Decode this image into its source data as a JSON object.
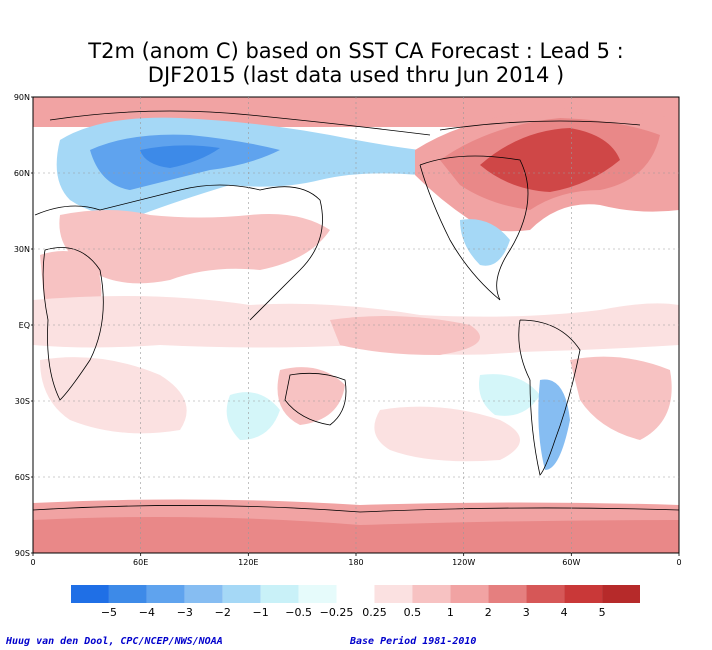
{
  "title_line1": "T2m (anom C) based on SST CA Forecast : Lead 5 :",
  "title_line2": "DJF2015 (last data used thru Jun 2014 )",
  "credit_left": "Huug van den Dool, CPC/NCEP/NWS/NOAA",
  "credit_right": "Base Period 1981-2010",
  "lat_labels": [
    "90N",
    "60N",
    "30N",
    "EQ",
    "30S",
    "60S",
    "90S"
  ],
  "lon_labels": [
    "0",
    "60E",
    "120E",
    "180",
    "120W",
    "60W",
    "0"
  ],
  "colorbar": {
    "labels": [
      "−5",
      "−4",
      "−3",
      "−2",
      "−1",
      "−0.5",
      "−0.25",
      "0.25",
      "0.5",
      "1",
      "2",
      "3",
      "4",
      "5"
    ],
    "colors": [
      "#1f6fe6",
      "#3d8ae8",
      "#5fa3ee",
      "#86bdf2",
      "#a5d8f6",
      "#c9f1f8",
      "#e6fbfb",
      "#ffffff",
      "#fbe1e1",
      "#f7c2c2",
      "#f1a3a3",
      "#e57f7f",
      "#d65757",
      "#c93838",
      "#b62a2a"
    ]
  },
  "map_legend": {
    "neutral": "#ffffff",
    "warm_light": "#fbe1e1",
    "warm_mid": "#f7c2c2",
    "warm_strong": "#e98888",
    "warm_max": "#cf4747",
    "cool_light": "#d4f6f9",
    "cool_mid": "#a5d8f6",
    "cool_strong": "#5fa3ee"
  }
}
